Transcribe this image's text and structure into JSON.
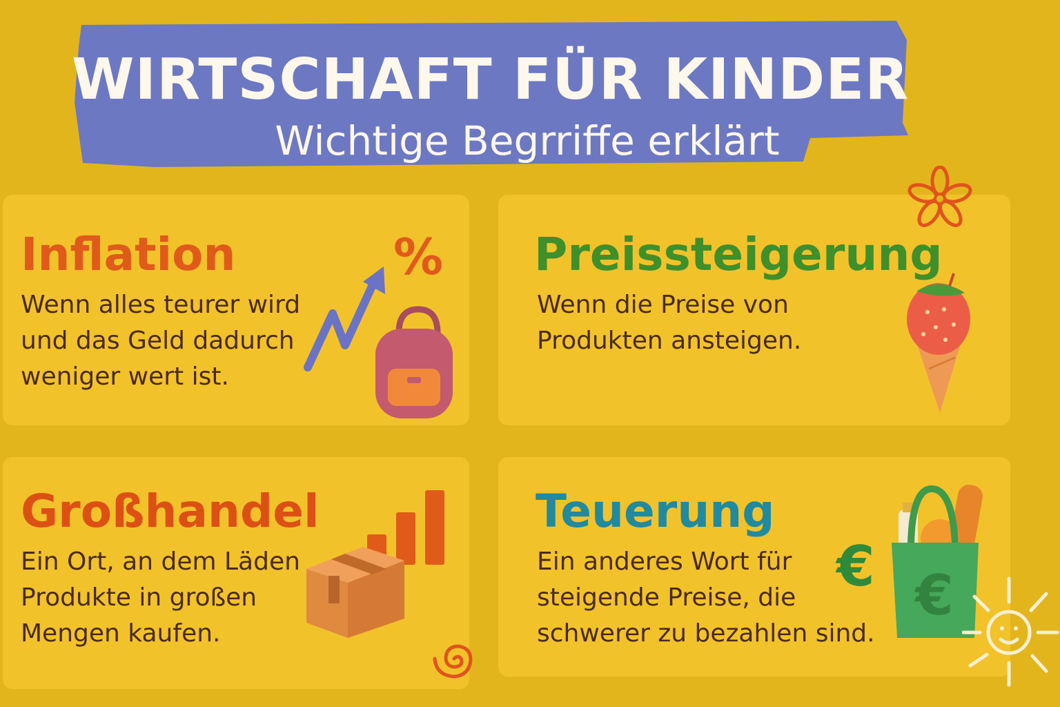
{
  "header": {
    "title": "WIRTSCHAFT FÜR KINDER",
    "subtitle": "Wichtige Begrriffe erklärt"
  },
  "colors": {
    "background": "#e3b51d",
    "card": "#f2c22b",
    "banner": "#6c78c2",
    "inflation": "#e05a1a",
    "preissteigerung": "#3f8f2a",
    "grosshandel": "#dd5014",
    "teuerung": "#1f8aa0",
    "body_text": "#4a2a1a"
  },
  "cards": [
    {
      "title": "Inflation",
      "lines": [
        "Wenn alles teurer wird",
        "und das Geld dadurch",
        "weniger wert ist."
      ],
      "icons": [
        "upward-arrow-icon",
        "percent-icon",
        "backpack-icon"
      ],
      "symbol": "%"
    },
    {
      "title": "Preissteigerung",
      "lines": [
        "Wenn die Preise von",
        "Produkten ansteigen."
      ],
      "icons": [
        "flower-icon",
        "ice-cream-icon"
      ]
    },
    {
      "title": "Großhandel",
      "lines": [
        "Ein Ort, an dem Läden",
        "Produkte in großen",
        "Mengen kaufen."
      ],
      "icons": [
        "bar-chart-icon",
        "cardboard-box-icon",
        "spiral-icon"
      ]
    },
    {
      "title": "Teuerung",
      "lines": [
        "Ein anderes Wort für",
        "steigende Preise, die",
        "schwerer zu bezahlen sind."
      ],
      "icons": [
        "euro-icon",
        "shopping-bag-icon",
        "sun-icon"
      ],
      "symbol": "€"
    }
  ]
}
